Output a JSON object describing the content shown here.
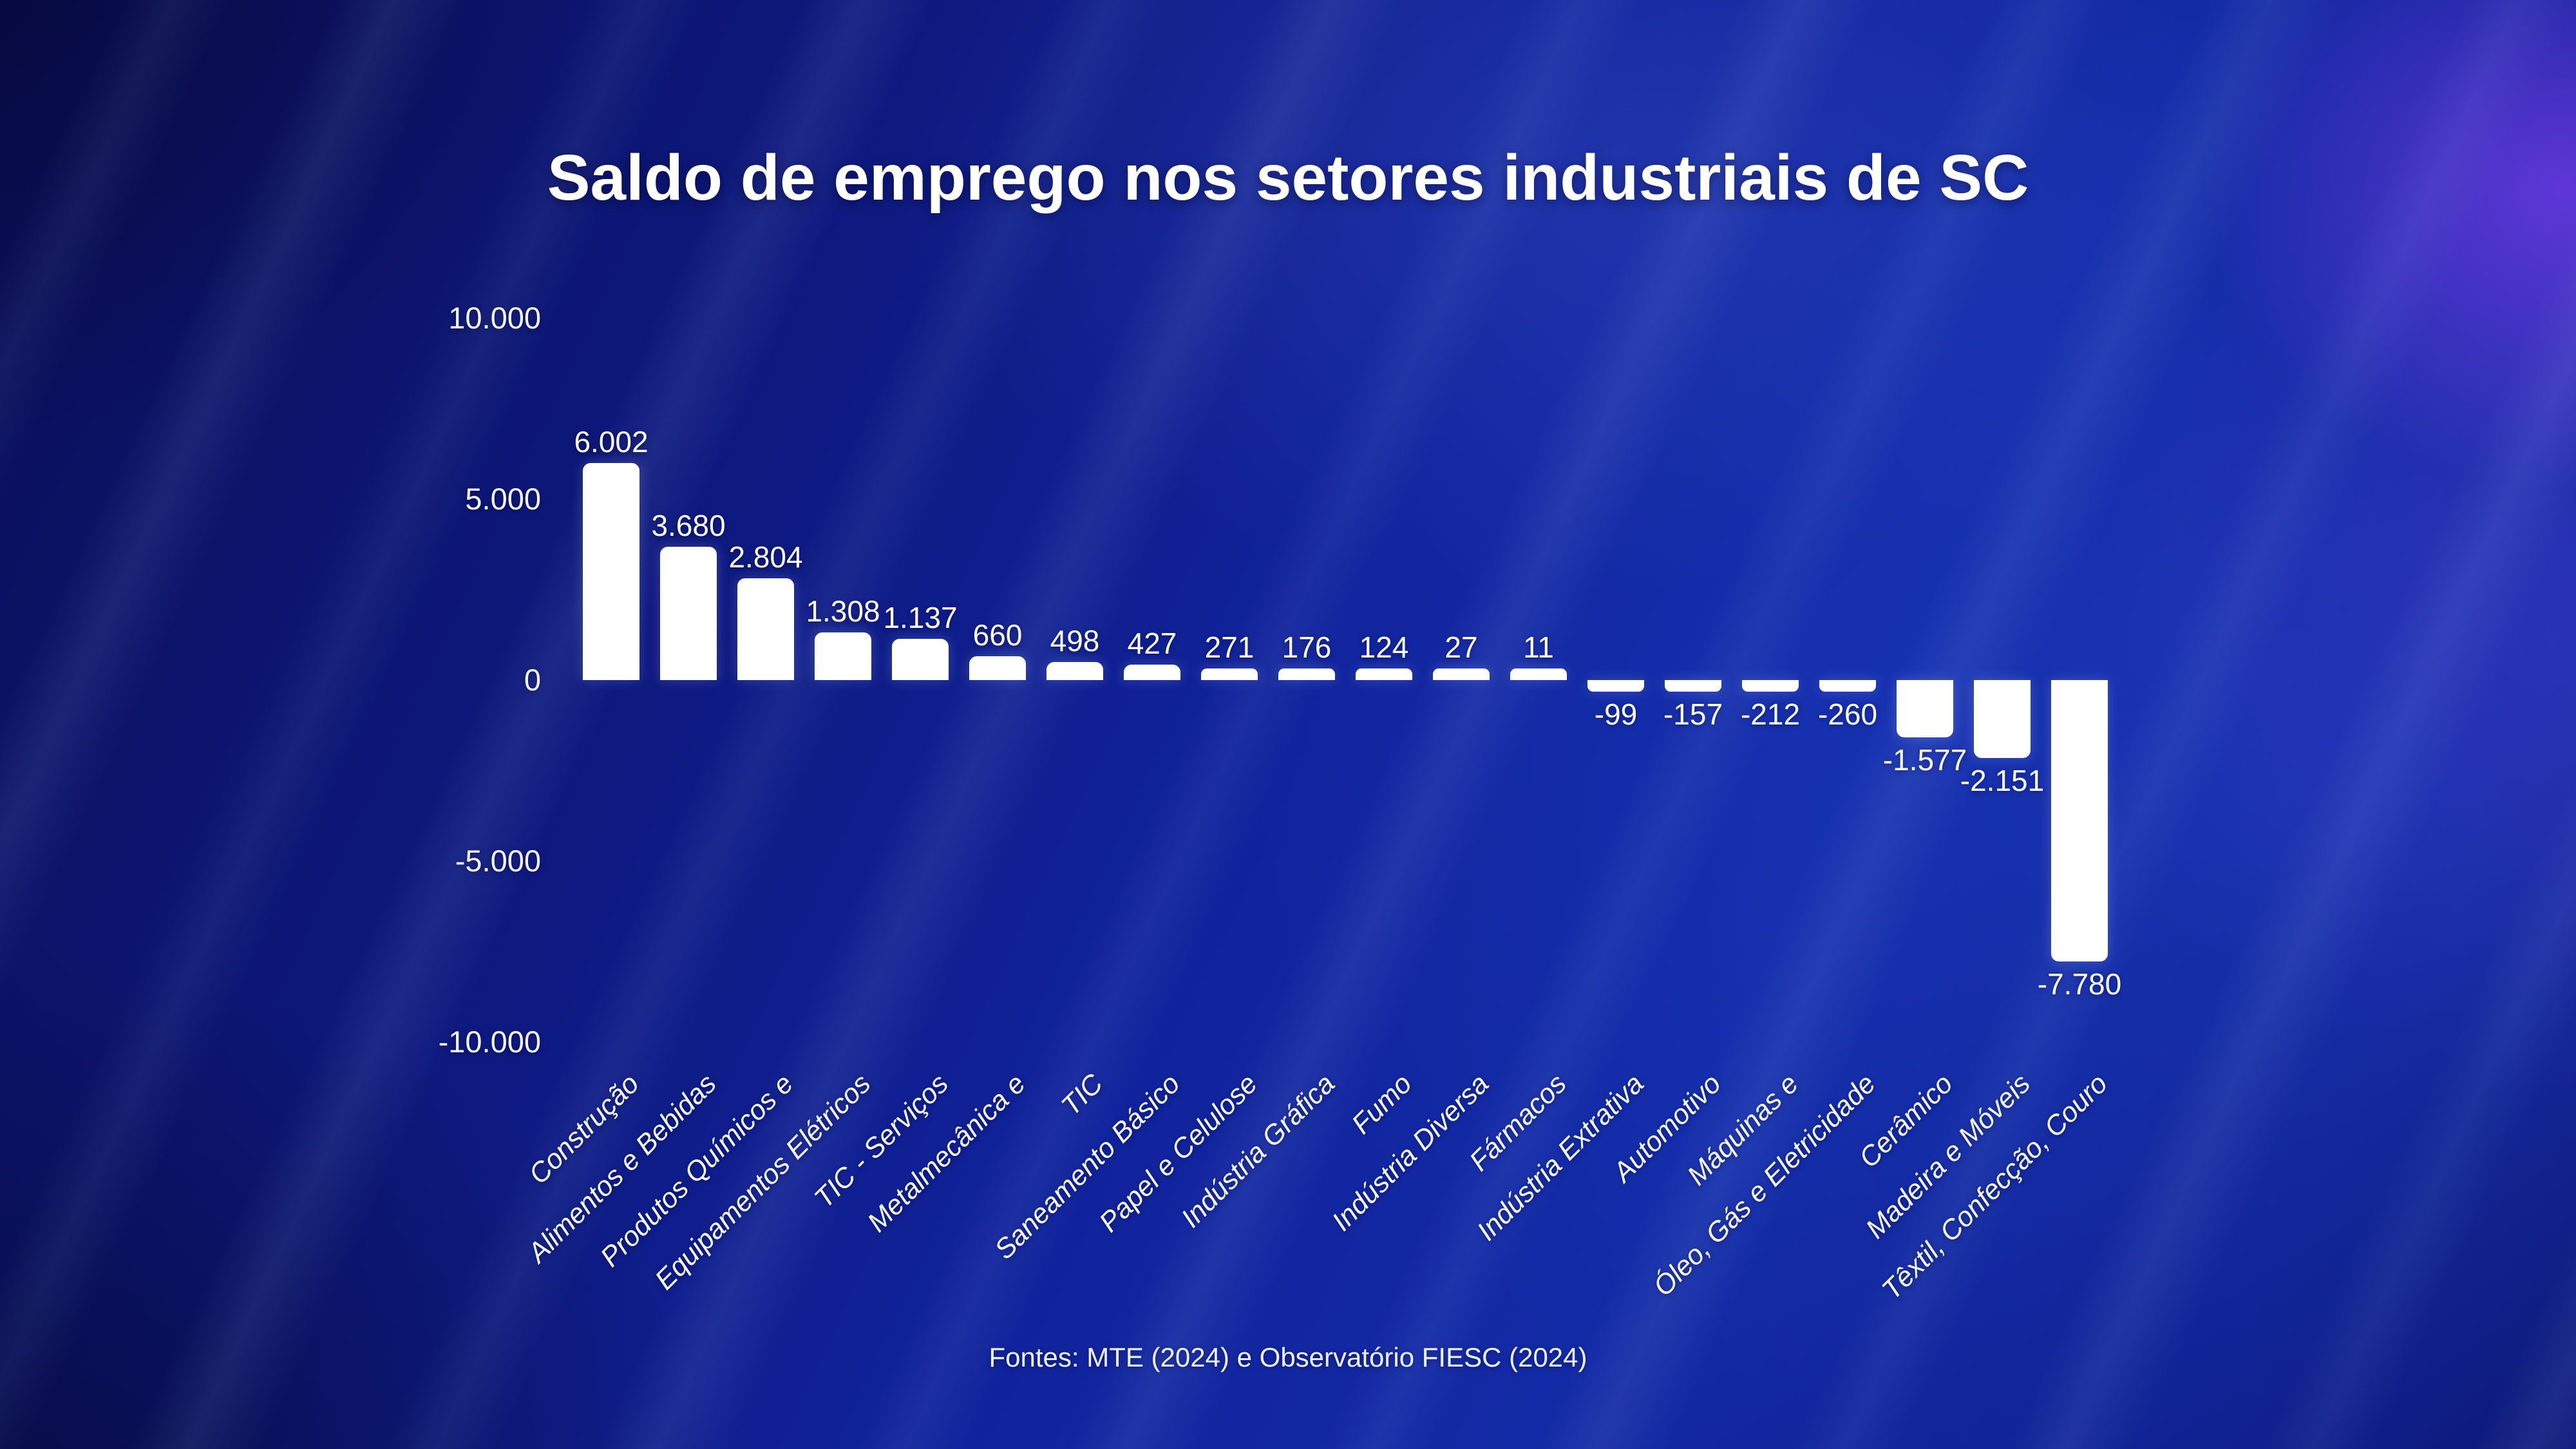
{
  "chart_data": {
    "type": "bar",
    "title": "Saldo de emprego nos setores industriais de SC",
    "source_note": "Fontes: MTE (2024) e Observatório FIESC (2024)",
    "xlabel": "",
    "ylabel": "",
    "ylim": [
      -10000,
      10000
    ],
    "grid": false,
    "legend_position": "none",
    "bar_color": "#ffffff",
    "text_color": "#ffffff",
    "categories": [
      "Construção",
      "Alimentos e Bebidas",
      "Produtos Químicos e",
      "Equipamentos Elétricos",
      "TIC - Serviços",
      "Metalmecânica e",
      "TIC",
      "Saneamento Básico",
      "Papel e Celulose",
      "Indústria Gráfica",
      "Fumo",
      "Indústria Diversa",
      "Fármacos",
      "Indústria Extrativa",
      "Automotivo",
      "Máquinas e",
      "Óleo, Gás e Eletricidade",
      "Cerâmico",
      "Madeira e Móveis",
      "Têxtil, Confecção, Couro"
    ],
    "values": [
      6002,
      3680,
      2804,
      1308,
      1137,
      660,
      498,
      427,
      271,
      176,
      124,
      27,
      11,
      -99,
      -157,
      -212,
      -260,
      -1577,
      -2151,
      -7780
    ],
    "value_labels": [
      "6.002",
      "3.680",
      "2.804",
      "1.308",
      "1.137",
      "660",
      "498",
      "427",
      "271",
      "176",
      "124",
      "27",
      "11",
      "-99",
      "-157",
      "-212",
      "-260",
      "-1.577",
      "-2.151",
      "-7.780"
    ],
    "yticks": [
      {
        "label": "10.000",
        "value": 10000
      },
      {
        "label": "5.000",
        "value": 5000
      },
      {
        "label": "0",
        "value": 0
      },
      {
        "label": "-5.000",
        "value": -5000
      },
      {
        "label": "-10.000",
        "value": -10000
      }
    ]
  },
  "colors": {
    "background_base": "#11239c",
    "background_dark_corner": "#070b3f",
    "accent_purple_glow": "#7a3fd8",
    "accent_bright_blue": "#1f3fd0",
    "bar": "#ffffff",
    "text": "#ffffff"
  }
}
